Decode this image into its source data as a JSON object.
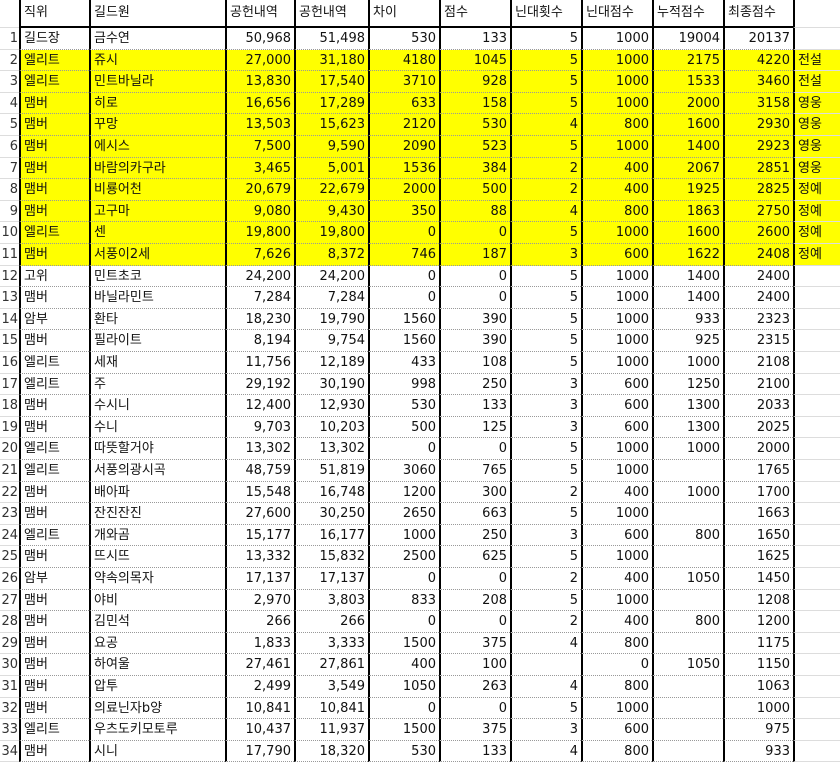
{
  "headers": [
    "직위",
    "길드원",
    "공헌내역",
    "공헌내역",
    "차이",
    "점수",
    "닌대횟수",
    "닌대점수",
    "누적점수",
    "최종점수"
  ],
  "highlight_color": "#ffff00",
  "rows": [
    [
      "1",
      "길드장",
      "금수연",
      "50,968",
      "51,498",
      "530",
      "133",
      "5",
      "1000",
      "19004",
      "20137",
      ""
    ],
    [
      "2",
      "엘리트",
      "쥬시",
      "27,000",
      "31,180",
      "4180",
      "1045",
      "5",
      "1000",
      "2175",
      "4220",
      "전설"
    ],
    [
      "3",
      "엘리트",
      "민트바닐라",
      "13,830",
      "17,540",
      "3710",
      "928",
      "5",
      "1000",
      "1533",
      "3460",
      "전설"
    ],
    [
      "4",
      "맴버",
      "히로",
      "16,656",
      "17,289",
      "633",
      "158",
      "5",
      "1000",
      "2000",
      "3158",
      "영웅"
    ],
    [
      "5",
      "맴버",
      "꾸망",
      "13,503",
      "15,623",
      "2120",
      "530",
      "4",
      "800",
      "1600",
      "2930",
      "영웅"
    ],
    [
      "6",
      "맴버",
      "에시스",
      "7,500",
      "9,590",
      "2090",
      "523",
      "5",
      "1000",
      "1400",
      "2923",
      "영웅"
    ],
    [
      "7",
      "맴버",
      "바람의카구라",
      "3,465",
      "5,001",
      "1536",
      "384",
      "2",
      "400",
      "2067",
      "2851",
      "영웅"
    ],
    [
      "8",
      "맴버",
      "비룡어천",
      "20,679",
      "22,679",
      "2000",
      "500",
      "2",
      "400",
      "1925",
      "2825",
      "정예"
    ],
    [
      "9",
      "맴버",
      "고구마",
      "9,080",
      "9,430",
      "350",
      "88",
      "4",
      "800",
      "1863",
      "2750",
      "정예"
    ],
    [
      "10",
      "엘리트",
      "센",
      "19,800",
      "19,800",
      "0",
      "0",
      "5",
      "1000",
      "1600",
      "2600",
      "정예"
    ],
    [
      "11",
      "맴버",
      "서풍이2세",
      "7,626",
      "8,372",
      "746",
      "187",
      "3",
      "600",
      "1622",
      "2408",
      "정예"
    ],
    [
      "12",
      "고위",
      "민트초코",
      "24,200",
      "24,200",
      "0",
      "0",
      "5",
      "1000",
      "1400",
      "2400",
      ""
    ],
    [
      "13",
      "맴버",
      "바닐라민트",
      "7,284",
      "7,284",
      "0",
      "0",
      "5",
      "1000",
      "1400",
      "2400",
      ""
    ],
    [
      "14",
      "암부",
      "환타",
      "18,230",
      "19,790",
      "1560",
      "390",
      "5",
      "1000",
      "933",
      "2323",
      ""
    ],
    [
      "15",
      "맴버",
      "필라이트",
      "8,194",
      "9,754",
      "1560",
      "390",
      "5",
      "1000",
      "925",
      "2315",
      ""
    ],
    [
      "16",
      "엘리트",
      "세재",
      "11,756",
      "12,189",
      "433",
      "108",
      "5",
      "1000",
      "1000",
      "2108",
      ""
    ],
    [
      "17",
      "엘리트",
      "주",
      "29,192",
      "30,190",
      "998",
      "250",
      "3",
      "600",
      "1250",
      "2100",
      ""
    ],
    [
      "18",
      "맴버",
      "수시니",
      "12,400",
      "12,930",
      "530",
      "133",
      "3",
      "600",
      "1300",
      "2033",
      ""
    ],
    [
      "19",
      "맴버",
      "수니",
      "9,703",
      "10,203",
      "500",
      "125",
      "3",
      "600",
      "1300",
      "2025",
      ""
    ],
    [
      "20",
      "엘리트",
      "따뜻할거야",
      "13,302",
      "13,302",
      "0",
      "0",
      "5",
      "1000",
      "1000",
      "2000",
      ""
    ],
    [
      "21",
      "엘리트",
      "서풍의광시곡",
      "48,759",
      "51,819",
      "3060",
      "765",
      "5",
      "1000",
      "",
      "1765",
      ""
    ],
    [
      "22",
      "맴버",
      "배아파",
      "15,548",
      "16,748",
      "1200",
      "300",
      "2",
      "400",
      "1000",
      "1700",
      ""
    ],
    [
      "23",
      "맴버",
      "잔진잔진",
      "27,600",
      "30,250",
      "2650",
      "663",
      "5",
      "1000",
      "",
      "1663",
      ""
    ],
    [
      "24",
      "엘리트",
      "개와곰",
      "15,177",
      "16,177",
      "1000",
      "250",
      "3",
      "600",
      "800",
      "1650",
      ""
    ],
    [
      "25",
      "맴버",
      "뜨시뜨",
      "13,332",
      "15,832",
      "2500",
      "625",
      "5",
      "1000",
      "",
      "1625",
      ""
    ],
    [
      "26",
      "암부",
      "약속의목자",
      "17,137",
      "17,137",
      "0",
      "0",
      "2",
      "400",
      "1050",
      "1450",
      ""
    ],
    [
      "27",
      "맴버",
      "야비",
      "2,970",
      "3,803",
      "833",
      "208",
      "5",
      "1000",
      "",
      "1208",
      ""
    ],
    [
      "28",
      "맴버",
      "김민석",
      "266",
      "266",
      "0",
      "0",
      "2",
      "400",
      "800",
      "1200",
      ""
    ],
    [
      "29",
      "맴버",
      "요공",
      "1,833",
      "3,333",
      "1500",
      "375",
      "4",
      "800",
      "",
      "1175",
      ""
    ],
    [
      "30",
      "맴버",
      "하여울",
      "27,461",
      "27,861",
      "400",
      "100",
      "",
      "0",
      "1050",
      "1150",
      ""
    ],
    [
      "31",
      "맴버",
      "압투",
      "2,499",
      "3,549",
      "1050",
      "263",
      "4",
      "800",
      "",
      "1063",
      ""
    ],
    [
      "32",
      "맴버",
      "의료닌자b양",
      "10,841",
      "10,841",
      "0",
      "0",
      "5",
      "1000",
      "",
      "1000",
      ""
    ],
    [
      "33",
      "엘리트",
      "우츠도키모토루",
      "10,437",
      "11,937",
      "1500",
      "375",
      "3",
      "600",
      "",
      "975",
      ""
    ],
    [
      "34",
      "맴버",
      "시니",
      "17,790",
      "18,320",
      "530",
      "133",
      "4",
      "800",
      "",
      "933",
      ""
    ]
  ]
}
